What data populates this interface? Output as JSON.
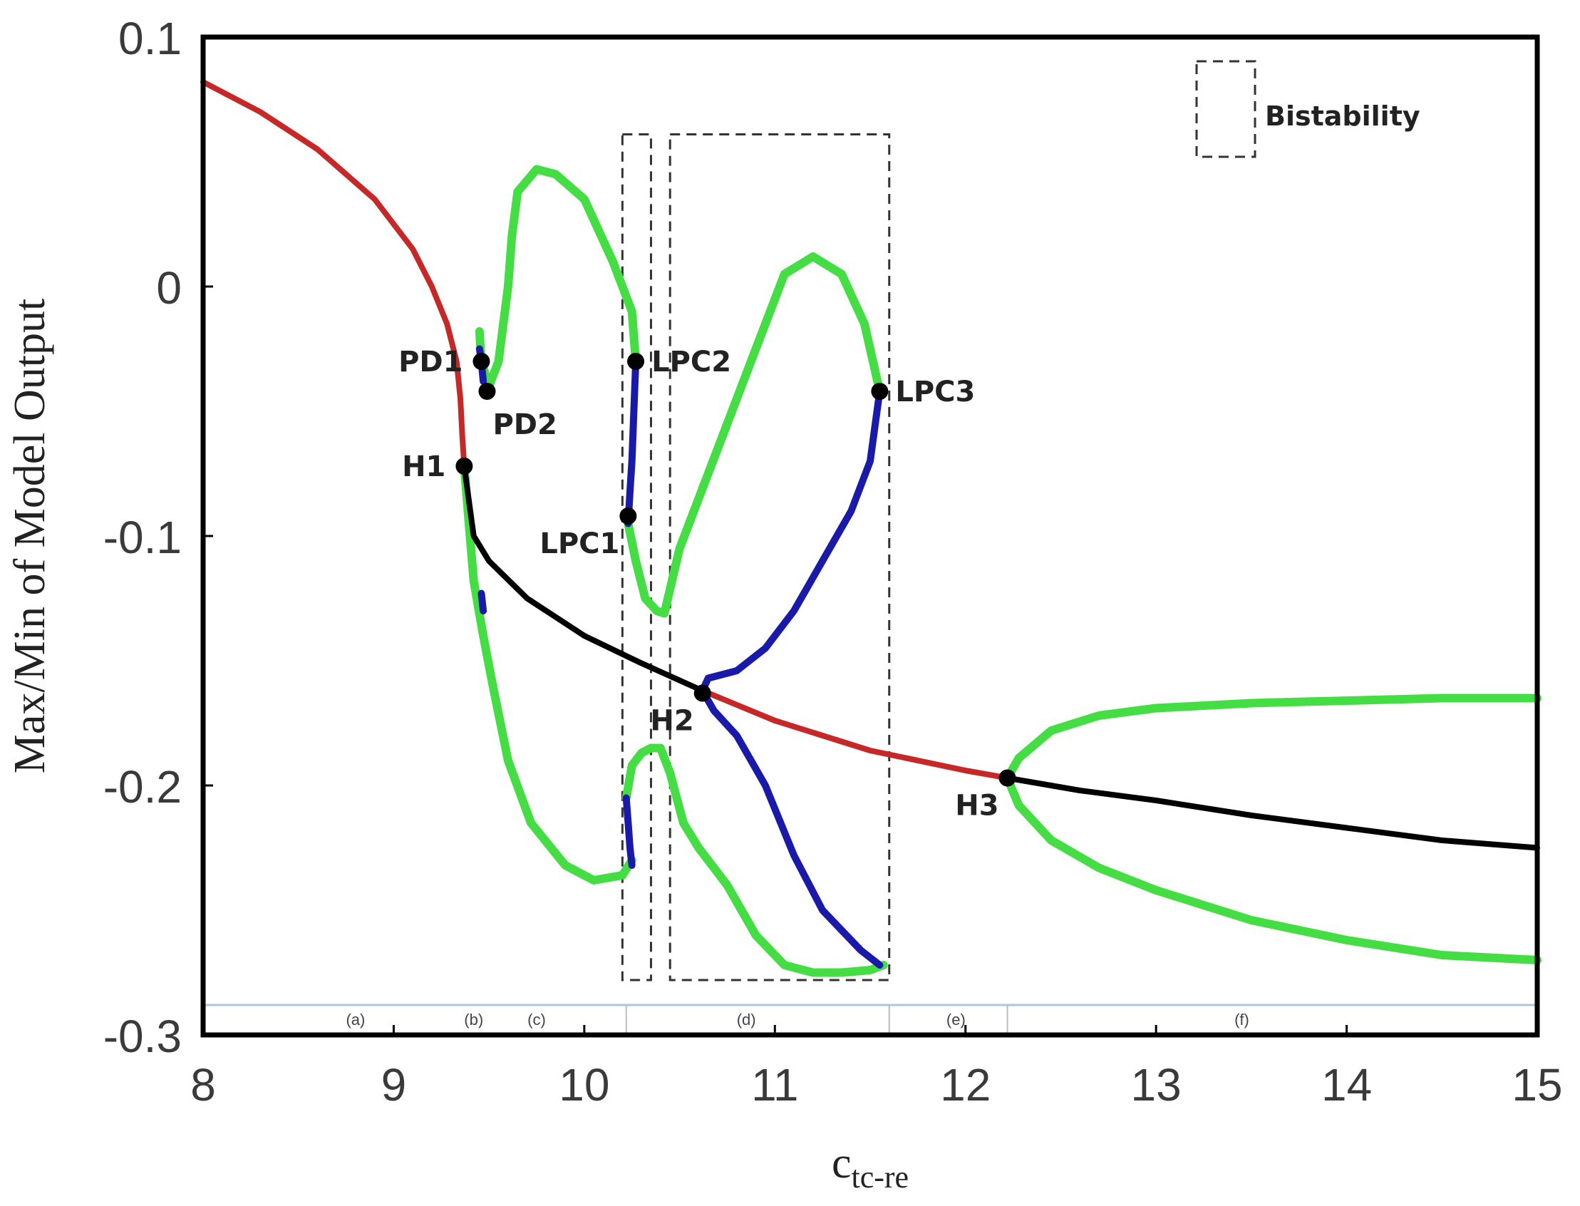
{
  "chart_data": {
    "type": "line",
    "xlabel": "c",
    "xlabel_sub": "tc-re",
    "ylabel": "Max/Min of Model Output",
    "xlim": [
      8,
      15
    ],
    "ylim": [
      -0.3,
      0.1
    ],
    "x_ticks": [
      "8",
      "9",
      "10",
      "11",
      "12",
      "13",
      "14",
      "15"
    ],
    "y_ticks": [
      "0.1",
      "0",
      "-0.1",
      "-0.2",
      "-0.3"
    ],
    "grid": false,
    "legend": {
      "label": "Bistability",
      "position": "top-right"
    },
    "colors": {
      "unstable_equilibrium": "#c62828",
      "stable_equilibrium": "#000000",
      "stable_cycle": "#44dd44",
      "unstable_cycle": "#1a1aaa",
      "bistability_box": "#333333",
      "region_bar": "#aec6d8"
    },
    "series": [
      {
        "role": "unstable_equilibrium",
        "points": [
          [
            8.0,
            0.082
          ],
          [
            8.3,
            0.07
          ],
          [
            8.6,
            0.055
          ],
          [
            8.9,
            0.035
          ],
          [
            9.1,
            0.015
          ],
          [
            9.2,
            0.0
          ],
          [
            9.28,
            -0.015
          ],
          [
            9.33,
            -0.03
          ],
          [
            9.35,
            -0.045
          ],
          [
            9.36,
            -0.06
          ],
          [
            9.37,
            -0.072
          ]
        ]
      },
      {
        "role": "stable_equilibrium",
        "points": [
          [
            9.37,
            -0.072
          ],
          [
            9.42,
            -0.1
          ],
          [
            9.5,
            -0.11
          ],
          [
            9.7,
            -0.125
          ],
          [
            10.0,
            -0.14
          ],
          [
            10.3,
            -0.151
          ],
          [
            10.62,
            -0.162
          ]
        ]
      },
      {
        "role": "unstable_equilibrium",
        "points": [
          [
            10.62,
            -0.162
          ],
          [
            11.0,
            -0.174
          ],
          [
            11.5,
            -0.186
          ],
          [
            12.0,
            -0.194
          ],
          [
            12.22,
            -0.197
          ]
        ]
      },
      {
        "role": "stable_equilibrium",
        "points": [
          [
            12.22,
            -0.197
          ],
          [
            12.6,
            -0.202
          ],
          [
            13.0,
            -0.206
          ],
          [
            13.5,
            -0.212
          ],
          [
            14.0,
            -0.217
          ],
          [
            14.5,
            -0.222
          ],
          [
            15.0,
            -0.225
          ]
        ]
      },
      {
        "role": "stable_cycle",
        "points": [
          [
            9.37,
            -0.072
          ],
          [
            9.4,
            -0.1
          ],
          [
            9.42,
            -0.118
          ],
          [
            9.47,
            -0.14
          ],
          [
            9.52,
            -0.16
          ],
          [
            9.6,
            -0.19
          ],
          [
            9.72,
            -0.215
          ],
          [
            9.9,
            -0.232
          ],
          [
            10.05,
            -0.238
          ],
          [
            10.2,
            -0.236
          ],
          [
            10.25,
            -0.23
          ]
        ]
      },
      {
        "role": "stable_cycle",
        "points": [
          [
            9.45,
            -0.018
          ],
          [
            9.46,
            -0.03
          ],
          [
            9.5,
            -0.04
          ],
          [
            9.55,
            -0.03
          ],
          [
            9.6,
            0.0
          ],
          [
            9.62,
            0.02
          ],
          [
            9.65,
            0.038
          ],
          [
            9.75,
            0.047
          ],
          [
            9.85,
            0.045
          ],
          [
            10.0,
            0.035
          ],
          [
            10.15,
            0.01
          ],
          [
            10.25,
            -0.01
          ],
          [
            10.27,
            -0.03
          ]
        ]
      },
      {
        "role": "stable_cycle",
        "points": [
          [
            10.23,
            -0.095
          ],
          [
            10.27,
            -0.11
          ],
          [
            10.32,
            -0.125
          ],
          [
            10.38,
            -0.13
          ],
          [
            10.42,
            -0.131
          ],
          [
            10.5,
            -0.105
          ],
          [
            10.6,
            -0.085
          ],
          [
            10.75,
            -0.055
          ],
          [
            10.9,
            -0.025
          ],
          [
            11.05,
            0.005
          ],
          [
            11.2,
            0.012
          ],
          [
            11.35,
            0.005
          ],
          [
            11.47,
            -0.015
          ],
          [
            11.55,
            -0.042
          ]
        ]
      },
      {
        "role": "stable_cycle",
        "points": [
          [
            10.22,
            -0.205
          ],
          [
            10.25,
            -0.192
          ],
          [
            10.3,
            -0.187
          ],
          [
            10.35,
            -0.185
          ],
          [
            10.4,
            -0.185
          ],
          [
            10.45,
            -0.195
          ],
          [
            10.52,
            -0.215
          ],
          [
            10.6,
            -0.225
          ],
          [
            10.75,
            -0.24
          ],
          [
            10.9,
            -0.26
          ],
          [
            11.05,
            -0.272
          ],
          [
            11.2,
            -0.275
          ],
          [
            11.35,
            -0.275
          ],
          [
            11.5,
            -0.274
          ],
          [
            11.57,
            -0.272
          ]
        ]
      },
      {
        "role": "stable_cycle",
        "points": [
          [
            12.22,
            -0.197
          ],
          [
            12.28,
            -0.189
          ],
          [
            12.45,
            -0.178
          ],
          [
            12.7,
            -0.172
          ],
          [
            13.0,
            -0.169
          ],
          [
            13.5,
            -0.167
          ],
          [
            14.0,
            -0.166
          ],
          [
            14.5,
            -0.165
          ],
          [
            15.0,
            -0.165
          ]
        ]
      },
      {
        "role": "stable_cycle",
        "points": [
          [
            12.22,
            -0.197
          ],
          [
            12.28,
            -0.208
          ],
          [
            12.45,
            -0.222
          ],
          [
            12.7,
            -0.233
          ],
          [
            13.0,
            -0.242
          ],
          [
            13.5,
            -0.254
          ],
          [
            14.0,
            -0.262
          ],
          [
            14.5,
            -0.268
          ],
          [
            15.0,
            -0.27
          ]
        ]
      },
      {
        "role": "unstable_cycle",
        "points": [
          [
            10.27,
            -0.03
          ],
          [
            10.26,
            -0.05
          ],
          [
            10.25,
            -0.07
          ],
          [
            10.24,
            -0.082
          ],
          [
            10.23,
            -0.095
          ]
        ]
      },
      {
        "role": "unstable_cycle",
        "points": [
          [
            10.22,
            -0.205
          ],
          [
            10.23,
            -0.215
          ],
          [
            10.24,
            -0.225
          ],
          [
            10.25,
            -0.232
          ]
        ]
      },
      {
        "role": "unstable_cycle",
        "points": [
          [
            10.62,
            -0.162
          ],
          [
            10.65,
            -0.157
          ],
          [
            10.8,
            -0.154
          ],
          [
            10.95,
            -0.145
          ],
          [
            11.1,
            -0.13
          ],
          [
            11.25,
            -0.11
          ],
          [
            11.4,
            -0.09
          ],
          [
            11.5,
            -0.07
          ],
          [
            11.55,
            -0.042
          ]
        ]
      },
      {
        "role": "unstable_cycle",
        "points": [
          [
            10.62,
            -0.162
          ],
          [
            10.68,
            -0.17
          ],
          [
            10.8,
            -0.18
          ],
          [
            10.95,
            -0.2
          ],
          [
            11.1,
            -0.228
          ],
          [
            11.25,
            -0.25
          ],
          [
            11.45,
            -0.266
          ],
          [
            11.55,
            -0.272
          ]
        ]
      },
      {
        "role": "unstable_cycle",
        "points": [
          [
            9.47,
            -0.038
          ],
          [
            9.46,
            -0.03
          ],
          [
            9.45,
            -0.025
          ]
        ]
      },
      {
        "role": "unstable_cycle",
        "points": [
          [
            9.46,
            -0.123
          ],
          [
            9.47,
            -0.13
          ]
        ]
      }
    ],
    "special_points": [
      {
        "label": "PD1",
        "x": 9.46,
        "y": -0.03,
        "label_pos": "left"
      },
      {
        "label": "PD2",
        "x": 9.49,
        "y": -0.042,
        "label_pos": "below-right"
      },
      {
        "label": "H1",
        "x": 9.37,
        "y": -0.072,
        "label_pos": "left"
      },
      {
        "label": "LPC1",
        "x": 10.23,
        "y": -0.092,
        "label_pos": "below-left"
      },
      {
        "label": "LPC2",
        "x": 10.27,
        "y": -0.03,
        "label_pos": "right"
      },
      {
        "label": "LPC3",
        "x": 11.55,
        "y": -0.042,
        "label_pos": "right"
      },
      {
        "label": "H2",
        "x": 10.62,
        "y": -0.163,
        "label_pos": "below-left"
      },
      {
        "label": "H3",
        "x": 12.22,
        "y": -0.197,
        "label_pos": "below-left"
      }
    ],
    "bistability_boxes": [
      {
        "x0": 10.2,
        "x1": 10.35,
        "y0": -0.278,
        "y1": 0.061
      },
      {
        "x0": 10.45,
        "x1": 11.6,
        "y0": -0.278,
        "y1": 0.061
      }
    ],
    "regions": [
      {
        "label": "(a)",
        "x": 8.8
      },
      {
        "label": "(b)",
        "x": 9.42
      },
      {
        "label": "(c)",
        "x": 9.75
      },
      {
        "label": "(d)",
        "x": 10.85
      },
      {
        "label": "(e)",
        "x": 11.95
      },
      {
        "label": "(f)",
        "x": 13.45
      }
    ],
    "region_boundaries": [
      10.22,
      11.6,
      12.22
    ]
  }
}
